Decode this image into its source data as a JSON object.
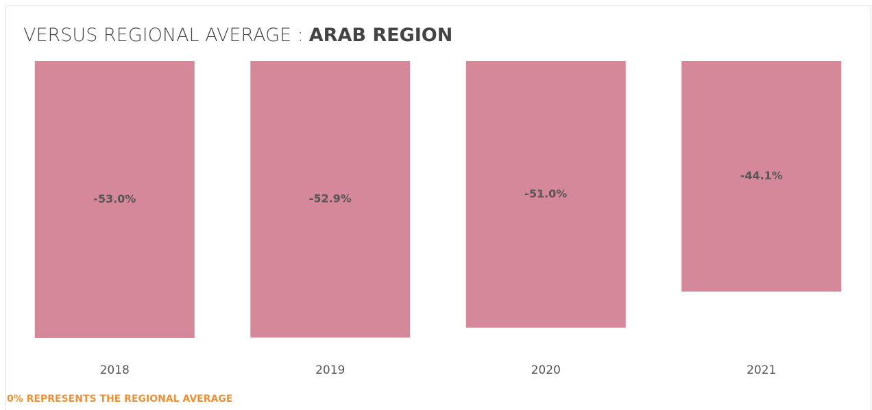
{
  "chart_data": {
    "type": "bar",
    "title": "VERSUS REGIONAL AVERAGE :",
    "title_highlight": "ARAB REGION",
    "categories": [
      "2018",
      "2019",
      "2020",
      "2021"
    ],
    "values": [
      -53.0,
      -52.9,
      -51.0,
      -44.1
    ],
    "value_labels": [
      "-53.0%",
      "-52.9%",
      "-51.0%",
      "-44.1%"
    ],
    "color": "#d6889b",
    "note": "0% REPRESENTS THE REGIONAL AVERAGE"
  }
}
